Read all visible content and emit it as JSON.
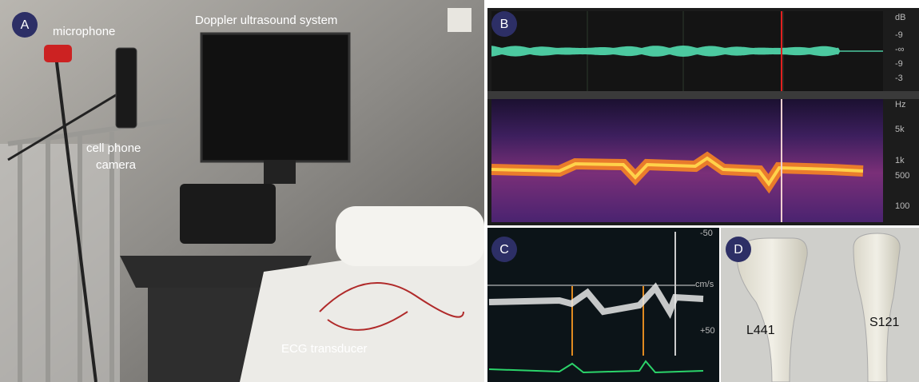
{
  "panels": [
    {
      "label": "A",
      "texts": [
        "microphone",
        "Doppler ultrasound system",
        "ECG transducer"
      ],
      "camera_lines": [
        "cell phone",
        "camera"
      ]
    },
    {
      "label": "B",
      "waveform_axis": [
        "dB",
        "-9",
        "-∞",
        "-9",
        "-3"
      ],
      "spectrogram_axis": [
        "Hz",
        "5k",
        "1k",
        "500",
        "100"
      ]
    },
    {
      "label": "C",
      "axis": [
        "-50",
        "cm/s",
        "+50"
      ]
    },
    {
      "label": "D",
      "probes": [
        "L441",
        "S121"
      ]
    }
  ]
}
